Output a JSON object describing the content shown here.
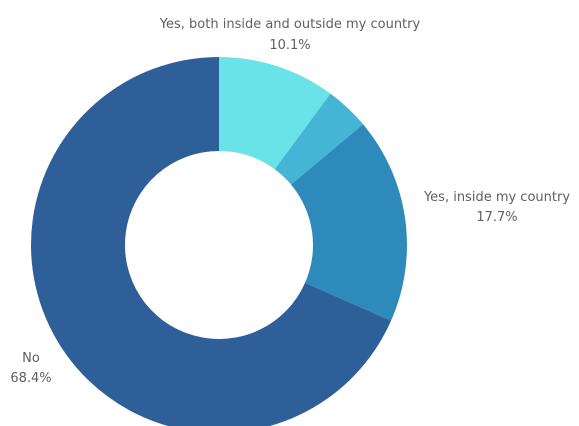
{
  "chart_data": {
    "type": "pie",
    "donut": true,
    "slices": [
      {
        "label": "Yes, both inside and outside my country",
        "value_label": "10.1%",
        "value": 10.1,
        "color": "#6ae3e8"
      },
      {
        "label": "",
        "value_label": "",
        "value": 3.8,
        "color": "#44b5d5"
      },
      {
        "label": "Yes, inside my country",
        "value_label": "17.7%",
        "value": 17.7,
        "color": "#2e8abb"
      },
      {
        "label": "No",
        "value_label": "68.4%",
        "value": 68.4,
        "color": "#2f5f99"
      }
    ]
  }
}
